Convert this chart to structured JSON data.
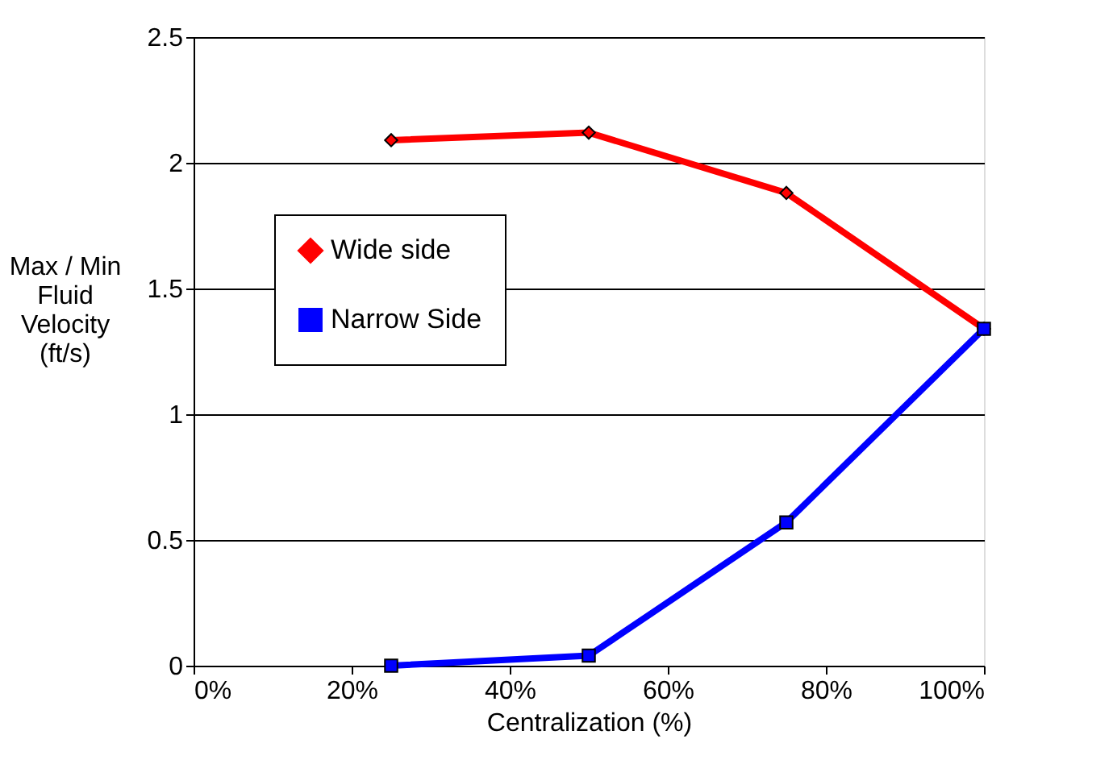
{
  "chart_data": {
    "type": "line",
    "xlabel": "Centralization (%)",
    "ylabel": "Max / Min Fluid Velocity (ft/s)",
    "x": [
      25,
      50,
      75,
      100
    ],
    "series": [
      {
        "name": "Wide side",
        "color": "#ff0000",
        "marker": "diamond",
        "values": [
          2.09,
          2.12,
          1.88,
          1.34
        ]
      },
      {
        "name": "Narrow Side",
        "color": "#0000ff",
        "marker": "square",
        "values": [
          0.0,
          0.04,
          0.57,
          1.34
        ]
      }
    ],
    "xlim": [
      0,
      100
    ],
    "xticks": [
      {
        "value": 0,
        "label": "0%"
      },
      {
        "value": 20,
        "label": "20%"
      },
      {
        "value": 40,
        "label": "40%"
      },
      {
        "value": 60,
        "label": "60%"
      },
      {
        "value": 80,
        "label": "80%"
      },
      {
        "value": 100,
        "label": "100%"
      }
    ],
    "ylim": [
      0,
      2.5
    ],
    "yticks": [
      0,
      0.5,
      1,
      1.5,
      2,
      2.5
    ],
    "grid": "y",
    "legend": "center left",
    "line_style": "solid"
  }
}
